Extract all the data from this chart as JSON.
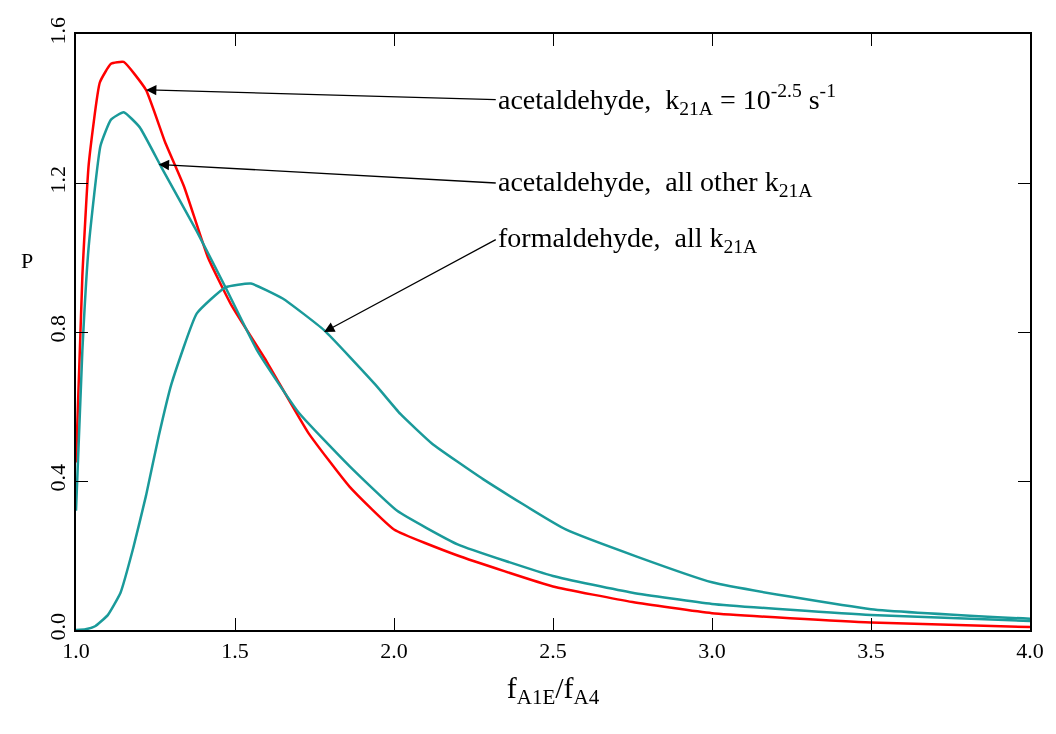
{
  "chart_data": {
    "type": "line",
    "xlabel": "f$_{A1E}$/f$_{A4}$",
    "ylabel": "P",
    "xlim": [
      1.0,
      4.0
    ],
    "xticks": [
      {
        "value": 1.0,
        "label": "1.0"
      },
      1.5,
      {
        "value": 2.0,
        "label": "2.0"
      },
      2.5,
      {
        "value": 3.0,
        "label": "3.0"
      },
      3.5,
      {
        "value": 4.0,
        "label": "4.0"
      }
    ],
    "ylim": [
      0.0,
      1.6
    ],
    "yticks": [
      {
        "value": 0.0,
        "label": "0.0"
      },
      0.4,
      0.8,
      1.2,
      1.6
    ],
    "marker": "none",
    "line_style": "solid",
    "series": [
      {
        "color": "#ff0000",
        "x": [
          1.0,
          1.02,
          1.04,
          1.075,
          1.11,
          1.15,
          1.22,
          1.28,
          1.34,
          1.415,
          1.49,
          1.6,
          1.73,
          1.86,
          2.0,
          2.2,
          2.5,
          2.75,
          3.0,
          3.5,
          4.0
        ],
        "values": [
          0.45,
          0.95,
          1.25,
          1.47,
          1.52,
          1.525,
          1.45,
          1.31,
          1.19,
          1.0,
          0.87,
          0.72,
          0.53,
          0.385,
          0.27,
          0.2,
          0.117,
          0.075,
          0.045,
          0.02,
          0.008
        ]
      },
      {
        "color": "#1a9a9a",
        "x": [
          1.0,
          1.02,
          1.04,
          1.077,
          1.11,
          1.15,
          1.2,
          1.27,
          1.38,
          1.47,
          1.57,
          1.7,
          1.86,
          2.01,
          2.2,
          2.5,
          2.75,
          3.0,
          3.5,
          4.0
        ],
        "values": [
          0.32,
          0.75,
          1.03,
          1.3,
          1.37,
          1.39,
          1.35,
          1.24,
          1.07,
          0.92,
          0.75,
          0.584,
          0.44,
          0.32,
          0.23,
          0.145,
          0.1,
          0.07,
          0.04,
          0.024
        ]
      },
      {
        "color": "#1a9a9a",
        "x": [
          1.0,
          1.03,
          1.06,
          1.1,
          1.14,
          1.18,
          1.22,
          1.26,
          1.3,
          1.38,
          1.47,
          1.55,
          1.65,
          1.78,
          1.94,
          2.02,
          2.12,
          2.28,
          2.54,
          3.0,
          3.5,
          4.0
        ],
        "values": [
          0.0,
          0.002,
          0.01,
          0.04,
          0.1,
          0.22,
          0.36,
          0.52,
          0.66,
          0.85,
          0.92,
          0.93,
          0.89,
          0.805,
          0.66,
          0.58,
          0.5,
          0.405,
          0.27,
          0.128,
          0.056,
          0.03
        ]
      }
    ],
    "annotations": [
      {
        "text": "acetaldehyde,  k$_{21A}$ = 10$^{-2.5}$ s$^{-1}$",
        "x": 1.22,
        "y": 1.45
      },
      {
        "text": "acetaldehyde,  all other k$_{21A}$",
        "x": 1.26,
        "y": 1.25
      },
      {
        "text": "formaldehyde,  all k$_{21A}$",
        "x": 1.78,
        "y": 0.8
      }
    ]
  }
}
